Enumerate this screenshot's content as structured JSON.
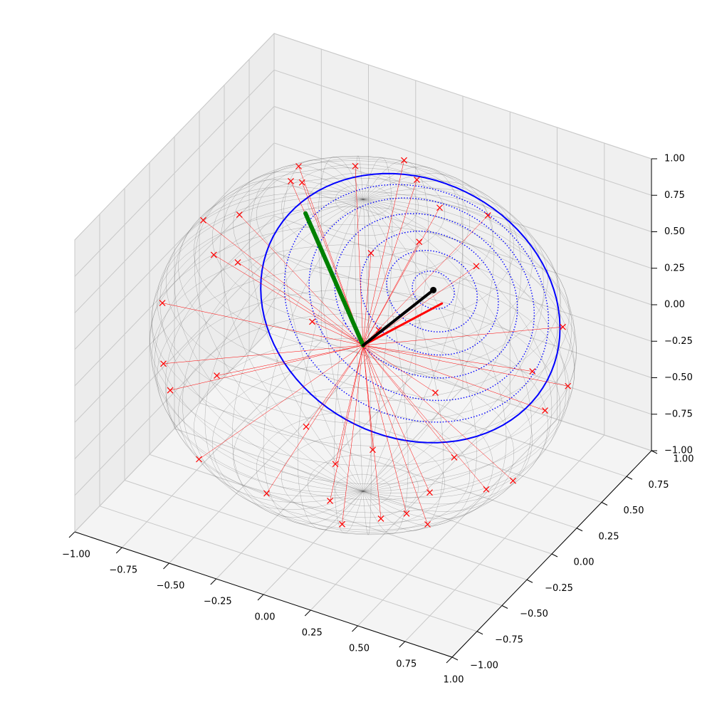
{
  "chart_data": {
    "type": "scatter3d",
    "xlim": [
      -1,
      1
    ],
    "ylim": [
      -1,
      1
    ],
    "zlim": [
      -1,
      1
    ],
    "xticks": [
      {
        "value": -1,
        "label": "−1.00"
      },
      {
        "value": -0.75,
        "label": "−0.75"
      },
      {
        "value": -0.5,
        "label": "−0.50"
      },
      {
        "value": -0.25,
        "label": "−0.25"
      },
      {
        "value": 0,
        "label": "0.00"
      },
      {
        "value": 0.25,
        "label": "0.25"
      },
      {
        "value": 0.5,
        "label": "0.50"
      },
      {
        "value": 0.75,
        "label": "0.75"
      },
      {
        "value": 1,
        "label": "1.00"
      }
    ],
    "yticks": [
      {
        "value": -1,
        "label": "−1.00"
      },
      {
        "value": -0.75,
        "label": "−0.75"
      },
      {
        "value": -0.5,
        "label": "−0.50"
      },
      {
        "value": -0.25,
        "label": "−0.25"
      },
      {
        "value": 0,
        "label": "0.00"
      },
      {
        "value": 0.25,
        "label": "0.25"
      },
      {
        "value": 0.5,
        "label": "0.50"
      },
      {
        "value": 0.75,
        "label": "0.75"
      },
      {
        "value": 1,
        "label": "1.00"
      }
    ],
    "zticks": [
      {
        "value": -1,
        "label": "−1.00"
      },
      {
        "value": -0.75,
        "label": "−0.75"
      },
      {
        "value": -0.5,
        "label": "−0.50"
      },
      {
        "value": -0.25,
        "label": "−0.25"
      },
      {
        "value": 0,
        "label": "0.00"
      },
      {
        "value": 0.25,
        "label": "0.25"
      },
      {
        "value": 0.5,
        "label": "0.50"
      },
      {
        "value": 0.75,
        "label": "0.75"
      },
      {
        "value": 1,
        "label": "1.00"
      }
    ],
    "grid": true,
    "sphere_wireframe": true,
    "series": [
      {
        "color": "red",
        "marker": "x",
        "lines_to_origin": true,
        "x": [
          0.3,
          0.1,
          -0.2,
          0.35,
          -0.35,
          0.2,
          0.45,
          -0.1,
          -0.5,
          0.6,
          -0.55,
          0.9,
          0.95,
          0.7,
          -0.9,
          -0.8,
          -0.95,
          0.98,
          0.8,
          0.5,
          -0.6,
          0.2,
          -0.3,
          -0.9,
          0.9,
          0.6,
          0.3,
          -0.5,
          0.7,
          -0.7,
          0.1,
          0.4,
          -0.4,
          0.2,
          -0.2,
          0.3,
          0.1,
          0.5,
          -0.3,
          0.6
        ],
        "y": [
          0.2,
          0.35,
          0.3,
          -0.1,
          0.05,
          -0.3,
          0.4,
          0.6,
          0.3,
          0.0,
          -0.2,
          0.3,
          -0.1,
          -0.6,
          0.1,
          -0.5,
          0.3,
          0.2,
          -0.6,
          -0.85,
          -0.8,
          -0.95,
          -0.9,
          -0.3,
          -0.2,
          -0.7,
          -0.9,
          -0.7,
          0.5,
          0.6,
          -0.7,
          -0.6,
          -0.5,
          -0.2,
          0.1,
          0.1,
          -0.4,
          -0.3,
          -0.4,
          0.1
        ],
        "z": [
          0.93,
          0.93,
          0.93,
          0.93,
          0.93,
          0.93,
          0.8,
          0.8,
          0.8,
          0.8,
          0.8,
          0.3,
          0.3,
          0.4,
          0.4,
          0.3,
          0,
          0,
          0,
          0.1,
          0,
          0.2,
          0.3,
          -0.3,
          -0.4,
          -0.4,
          -0.3,
          -0.5,
          -0.5,
          0.4,
          0.7,
          0.7,
          0.75,
          -0.96,
          -0.97,
          -0.95,
          -0.9,
          -0.8,
          -0.86,
          -0.8
        ]
      }
    ],
    "vectors": [
      {
        "color": "green",
        "width": 6,
        "x": -0.2,
        "y": -0.2,
        "z": 0.96
      },
      {
        "color": "red",
        "width": 3,
        "x": 0.55,
        "y": -0.25,
        "z": 0.7
      },
      {
        "color": "black",
        "width": 4,
        "tip_marker": true,
        "x": 0.52,
        "y": -0.28,
        "z": 0.8
      }
    ],
    "circles": [
      {
        "color": "blue",
        "style": "solid",
        "angle_deg": 48
      },
      {
        "color": "blue",
        "style": "dotted",
        "angle_deg": 6
      },
      {
        "color": "blue",
        "style": "dotted",
        "angle_deg": 13
      },
      {
        "color": "blue",
        "style": "dotted",
        "angle_deg": 20
      },
      {
        "color": "blue",
        "style": "dotted",
        "angle_deg": 27
      },
      {
        "color": "blue",
        "style": "dotted",
        "angle_deg": 34
      },
      {
        "color": "blue",
        "style": "dotted",
        "angle_deg": 41
      }
    ]
  }
}
